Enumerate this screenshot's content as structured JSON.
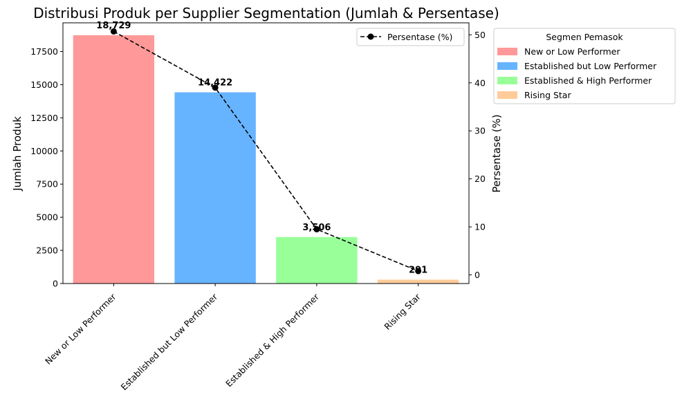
{
  "chart_data": {
    "type": "bar",
    "title": "Distribusi Produk per Supplier Segmentation (Jumlah & Persentase)",
    "categories": [
      "New or Low Performer",
      "Established but Low Performer",
      "Established & High Performer",
      "Rising Star"
    ],
    "values": [
      18729,
      14422,
      3506,
      291
    ],
    "value_labels": [
      "18,729",
      "14,422",
      "3,506",
      "291"
    ],
    "colors": [
      "#ff9999",
      "#66b3ff",
      "#99ff99",
      "#ffcc99"
    ],
    "ylabel": "Jumlah Produk",
    "ylim": [
      0,
      19665
    ],
    "yticks": [
      0,
      2500,
      5000,
      7500,
      10000,
      12500,
      15000,
      17500
    ],
    "ytick_labels": [
      "0",
      "2500",
      "5000",
      "7500",
      "10000",
      "12500",
      "15000",
      "17500"
    ],
    "secondary_axis": {
      "ylabel": "Persentase (%)",
      "ylim": [
        -1.8,
        52.5
      ],
      "yticks": [
        0,
        10,
        20,
        30,
        40,
        50
      ],
      "ytick_labels": [
        "0",
        "10",
        "20",
        "30",
        "40",
        "50"
      ]
    },
    "line_series": {
      "name": "Persentase (%)",
      "values": [
        50.7,
        39.0,
        9.5,
        0.8
      ],
      "style": "dashed",
      "marker": "circle",
      "color": "#000000"
    },
    "line_legend": {
      "label": "Persentase (%)",
      "placement": "upper-right"
    },
    "segment_legend": {
      "title": "Segmen Pemasok",
      "placement": "outside-right",
      "items": [
        "New or Low Performer",
        "Established but Low Performer",
        "Established & High Performer",
        "Rising Star"
      ]
    },
    "grid": false
  }
}
